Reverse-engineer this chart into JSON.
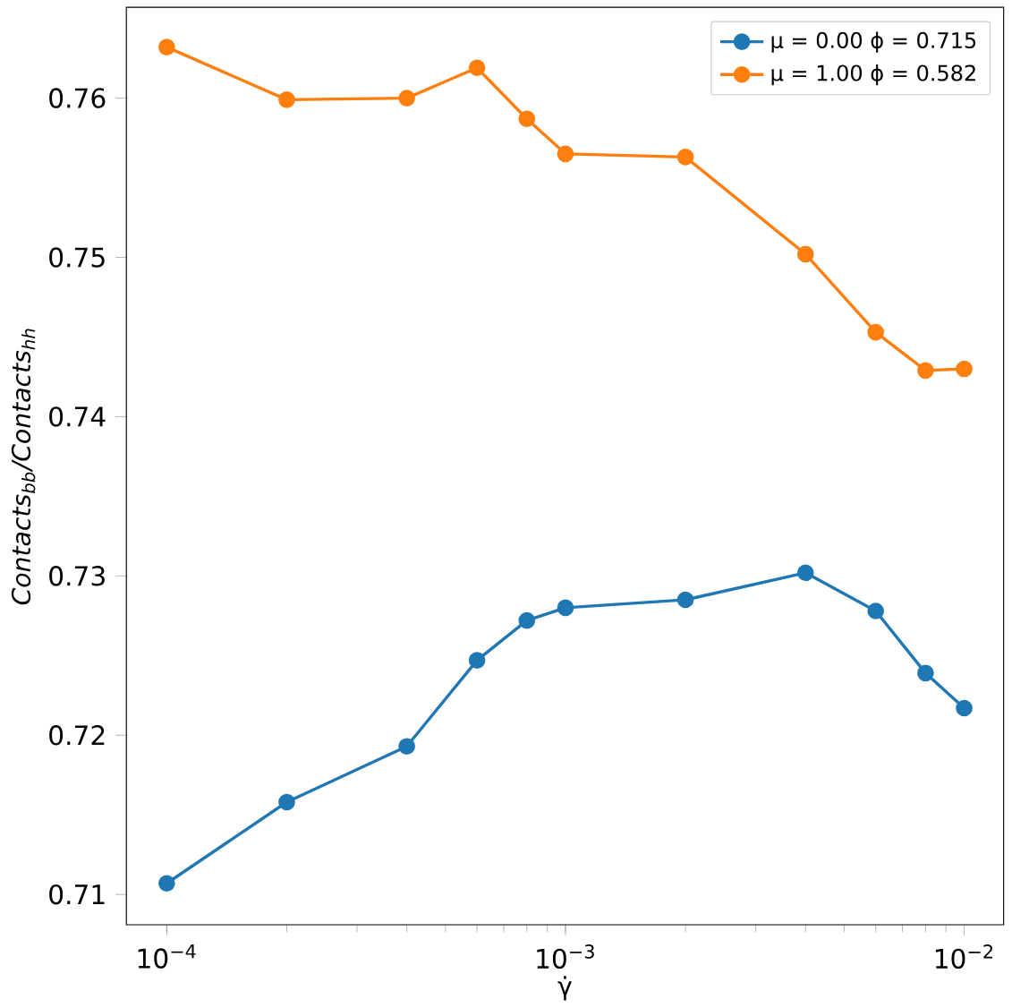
{
  "chart_data": {
    "type": "line",
    "xlabel": "γ̇",
    "ylabel": "Contacts$_{bb}$/Contacts$_{hh}$",
    "log": "x",
    "x": [
      0.0001,
      0.0002,
      0.0004,
      0.0006,
      0.0008,
      0.001,
      0.002,
      0.004,
      0.006,
      0.008,
      0.01
    ],
    "series": [
      {
        "name": "μ = 0.00 ϕ = 0.715",
        "color": "#1f77b4",
        "values": [
          0.7107,
          0.7158,
          0.7193,
          0.7247,
          0.7272,
          0.728,
          0.7285,
          0.7302,
          0.7278,
          0.7239,
          0.7217
        ]
      },
      {
        "name": "μ = 1.00 ϕ = 0.582",
        "color": "#ff7f0e",
        "values": [
          0.7632,
          0.7599,
          0.76,
          0.7619,
          0.7587,
          0.7565,
          0.7563,
          0.7502,
          0.7453,
          0.7429,
          0.743
        ]
      }
    ],
    "xlim": [
      7.92e-05,
      0.01256
    ],
    "ylim": [
      0.7081,
      0.7657
    ],
    "xticks": [
      {
        "value": 0.0001,
        "label": "10$^{−4}$"
      },
      {
        "value": 0.001,
        "label": "10$^{−3}$"
      },
      {
        "value": 0.01,
        "label": "10$^{−2}$"
      }
    ],
    "yticks": [
      0.71,
      0.72,
      0.73,
      0.74,
      0.75,
      0.76
    ],
    "legend": "top right",
    "grid": false,
    "marker": "circle",
    "line_style": "solid"
  }
}
